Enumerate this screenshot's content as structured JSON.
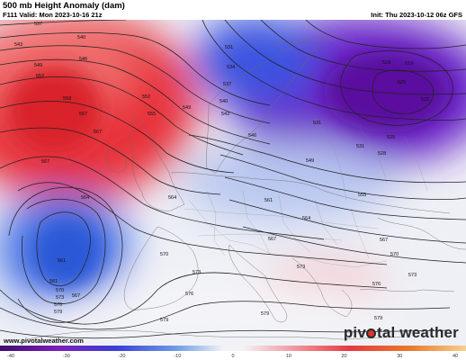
{
  "header": {
    "title": "500 mb Height Anomaly (dam)",
    "valid": "F111 Valid: Mon 2023-10-16 21z",
    "init": "Init: Thu 2023-10-12 06z GFS"
  },
  "footer": {
    "website": "www.pivotalweather.com",
    "brand_left": "piv",
    "brand_right": "tal weather"
  },
  "contour_labels": [
    "537",
    "540",
    "543",
    "546",
    "549",
    "552",
    "555",
    "558",
    "561",
    "564",
    "567",
    "570",
    "573",
    "576",
    "579",
    "531",
    "534",
    "528",
    "525",
    "522",
    "519"
  ],
  "colorbar": {
    "ticks": [
      "-40",
      "-30",
      "-20",
      "-10",
      "0",
      "10",
      "20",
      "30",
      "40"
    ],
    "min": -40,
    "max": 40
  },
  "colors": {
    "positive_anomaly": "#e3353b",
    "negative_anomaly": "#4f3fd6",
    "deep_negative": "#7a1fb8",
    "neutral": "#f2f2f5"
  }
}
